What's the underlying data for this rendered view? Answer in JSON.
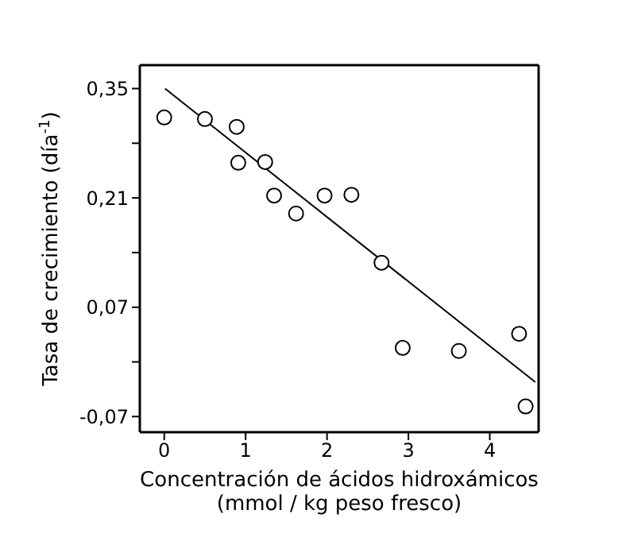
{
  "chart_data": {
    "type": "scatter",
    "xlabel": "Concentración de ácidos hidroxámicos\n(mmol / kg peso fresco)",
    "ylabel": "Tasa de crecimiento (día$^{-1}$)",
    "xlim": [
      -0.3,
      4.6
    ],
    "xticks": [
      0,
      1,
      2,
      3,
      4
    ],
    "ylim": [
      -0.09,
      0.38
    ],
    "yticks": [
      {
        "value": -0.07,
        "label": "-0,07"
      },
      {
        "value": 0,
        "label": null
      },
      {
        "value": 0.07,
        "label": "0,07"
      },
      {
        "value": 0.14,
        "label": null
      },
      {
        "value": 0.21,
        "label": "0,21"
      },
      {
        "value": 0.28,
        "label": null
      },
      {
        "value": 0.35,
        "label": "0,35"
      }
    ],
    "series": [
      {
        "color": "#000000",
        "marker": "circle",
        "x": [
          0,
          0.5,
          0.89,
          0.91,
          1.24,
          1.35,
          1.62,
          1.97,
          2.3,
          2.67,
          2.93,
          3.62,
          4.36,
          4.44
        ],
        "values": [
          0.313,
          0.311,
          0.301,
          0.255,
          0.256,
          0.213,
          0.19,
          0.213,
          0.214,
          0.127,
          0.018,
          0.014,
          0.036,
          -0.057
        ]
      },
      {
        "type": "line",
        "color": "#000000",
        "x": [
          0.01,
          4.56
        ],
        "values": [
          0.35,
          -0.026
        ]
      }
    ]
  }
}
